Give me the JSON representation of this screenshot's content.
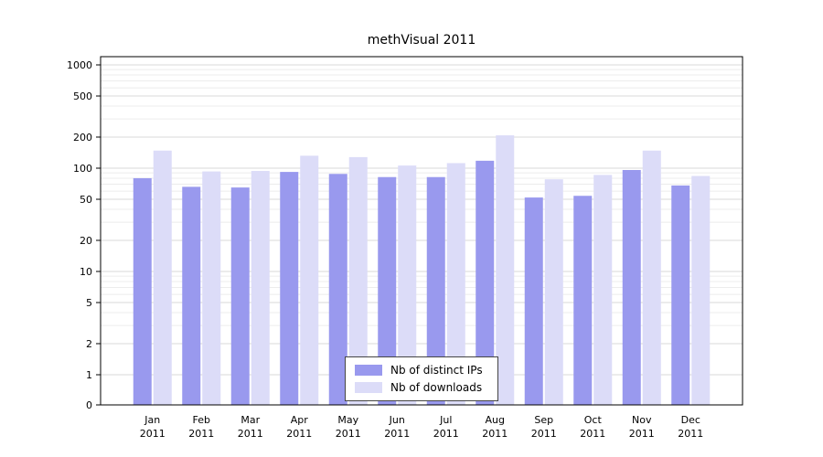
{
  "chart_data": {
    "type": "bar",
    "title": "methVisual 2011",
    "year_label": "2011",
    "categories": [
      "Jan",
      "Feb",
      "Mar",
      "Apr",
      "May",
      "Jun",
      "Jul",
      "Aug",
      "Sep",
      "Oct",
      "Nov",
      "Dec"
    ],
    "series": [
      {
        "name": "Nb of distinct IPs",
        "color": "#9999ee",
        "values": [
          80,
          66,
          65,
          92,
          88,
          82,
          82,
          118,
          52,
          54,
          96,
          68
        ]
      },
      {
        "name": "Nb of downloads",
        "color": "#dcdcf8",
        "values": [
          148,
          93,
          94,
          132,
          128,
          106,
          112,
          208,
          78,
          86,
          148,
          84
        ]
      }
    ],
    "y_axis": {
      "scale": "log",
      "ticks": [
        0,
        1,
        2,
        5,
        10,
        20,
        50,
        100,
        200,
        500,
        1000
      ]
    },
    "xlabel": "",
    "ylabel": "",
    "grid": true,
    "legend_position": "bottom-center",
    "colors": {
      "grid_minor": "#ececec",
      "grid_major": "#d8d8d8",
      "axis": "#000000"
    }
  }
}
